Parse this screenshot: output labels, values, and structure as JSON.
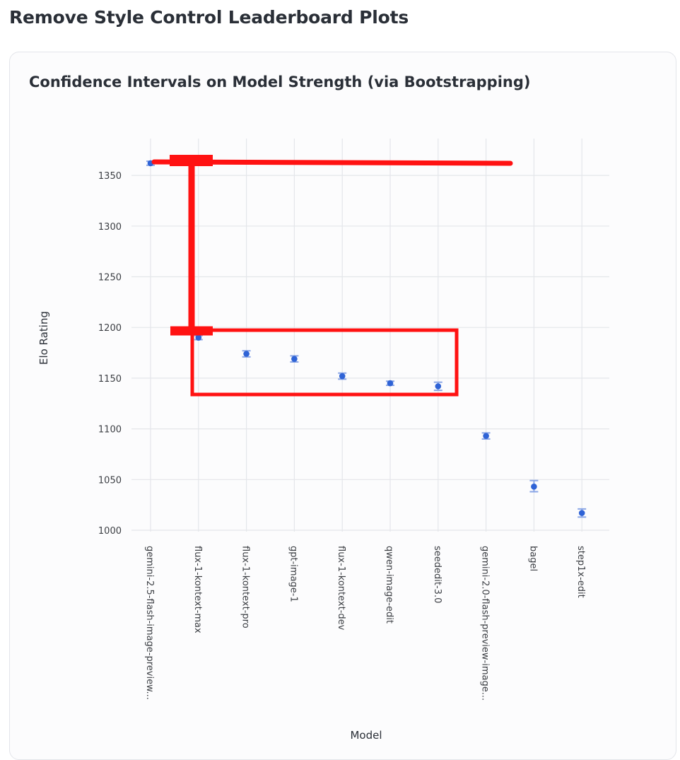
{
  "page": {
    "title": "Remove Style Control Leaderboard Plots"
  },
  "card": {
    "title": "Confidence Intervals on Model Strength (via Bootstrapping)"
  },
  "chart_data": {
    "type": "scatter",
    "title": "Confidence Intervals on Model Strength (via Bootstrapping)",
    "xlabel": "Model",
    "ylabel": "Elo Rating",
    "ylim": [
      995,
      1380
    ],
    "yticks": [
      1000,
      1050,
      1100,
      1150,
      1200,
      1250,
      1300,
      1350
    ],
    "grid": true,
    "categories": [
      "gemini-2.5-flash-image-preview...",
      "flux-1-kontext-max",
      "flux-1-kontext-pro",
      "gpt-image-1",
      "flux-1-kontext-dev",
      "qwen-image-edit",
      "seededit-3.0",
      "gemini-2.0-flash-preview-image...",
      "bagel",
      "step1x-edit"
    ],
    "values": [
      1362,
      1190,
      1174,
      1169,
      1152,
      1145,
      1142,
      1093,
      1043,
      1017
    ],
    "lower": [
      1360,
      1188,
      1171,
      1166,
      1149,
      1143,
      1138,
      1090,
      1038,
      1013
    ],
    "upper": [
      1364,
      1192,
      1177,
      1172,
      1155,
      1147,
      1146,
      1096,
      1049,
      1021
    ],
    "point_color": "#2f63d6",
    "error_color": "#8aa6e6",
    "annotation_color": "#ff1212"
  }
}
